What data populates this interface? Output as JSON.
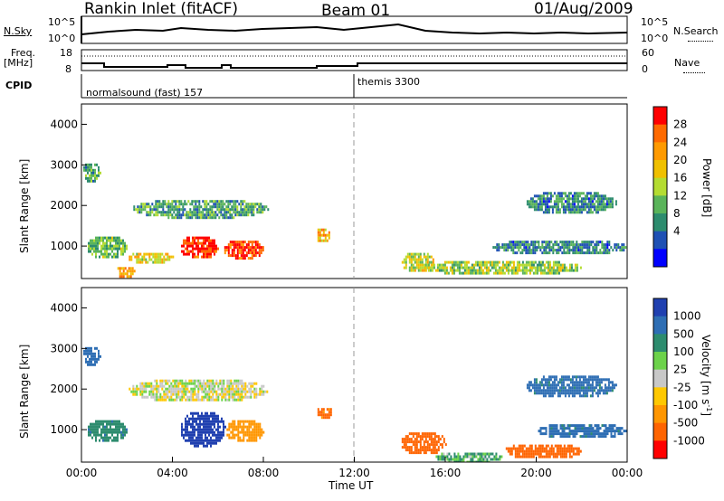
{
  "header": {
    "station": "Rankin Inlet (fitACF)",
    "beam": "Beam 01",
    "date": "01/Aug/2009"
  },
  "summary_panels": {
    "nsky_label": "N.Sky",
    "nsky_ticks": [
      "10^5",
      "10^0"
    ],
    "nsearch_label": "N.Search",
    "nsearch_ticks": [
      "10^5",
      "10^0"
    ],
    "freq_label": "Freq.",
    "freq_unit": "[MHz]",
    "freq_ticks": [
      "18",
      "8"
    ],
    "nave_label": "Nave",
    "nave_ticks": [
      "60",
      "0"
    ],
    "cpid_label": "CPID",
    "cpid_segments": [
      {
        "label": "normalsound (fast) 157",
        "start_hour": 0,
        "end_hour": 12
      },
      {
        "label": "themis 3300",
        "start_hour": 12,
        "end_hour": 24
      }
    ]
  },
  "colorbars": {
    "power": {
      "label": "Power [dB]",
      "ticks": [
        "28",
        "24",
        "20",
        "16",
        "12",
        "8",
        "4"
      ],
      "colors": [
        "#ff0000",
        "#ff6a00",
        "#ff9a00",
        "#f0c000",
        "#b4dc32",
        "#5ab45a",
        "#2d8c6e",
        "#1e50b4",
        "#0000ff"
      ]
    },
    "velocity": {
      "label": "Velocity [m s",
      "label_sup": "-1",
      "label_end": "]",
      "ticks": [
        "1000",
        "500",
        "100",
        "25",
        "-25",
        "-100",
        "-500",
        "-1000"
      ],
      "colors": [
        "#2040b0",
        "#2e6eb4",
        "#2d8c6e",
        "#6cd24a",
        "#c8c8c8",
        "#ffc800",
        "#ff9600",
        "#ff6400",
        "#ff0000"
      ]
    }
  },
  "chart_data": [
    {
      "type": "heatmap",
      "name": "power",
      "ylabel": "Slant Range [km]",
      "yticks": [
        "4000",
        "3000",
        "2000",
        "1000"
      ],
      "ylim": [
        200,
        4500
      ],
      "xlim": [
        0,
        24
      ],
      "zlabel": "Power [dB]",
      "zlim": [
        0,
        30
      ],
      "regions": [
        {
          "x0": 0.0,
          "x1": 0.8,
          "y0": 2600,
          "y1": 3100,
          "value": 10
        },
        {
          "x0": 0.2,
          "x1": 2.0,
          "y0": 700,
          "y1": 1300,
          "value": 12
        },
        {
          "x0": 1.5,
          "x1": 2.3,
          "y0": 250,
          "y1": 550,
          "value": 22
        },
        {
          "x0": 2.0,
          "x1": 4.0,
          "y0": 600,
          "y1": 900,
          "value": 18
        },
        {
          "x0": 4.3,
          "x1": 6.0,
          "y0": 700,
          "y1": 1300,
          "value": 28
        },
        {
          "x0": 6.2,
          "x1": 8.0,
          "y0": 700,
          "y1": 1200,
          "value": 27
        },
        {
          "x0": 2.2,
          "x1": 8.2,
          "y0": 1700,
          "y1": 2200,
          "value": 10
        },
        {
          "x0": 10.3,
          "x1": 10.9,
          "y0": 1100,
          "y1": 1500,
          "value": 20
        },
        {
          "x0": 14.0,
          "x1": 15.5,
          "y0": 400,
          "y1": 900,
          "value": 16
        },
        {
          "x0": 15.0,
          "x1": 22.0,
          "y0": 300,
          "y1": 700,
          "value": 14
        },
        {
          "x0": 18.0,
          "x1": 24.0,
          "y0": 800,
          "y1": 1200,
          "value": 8
        },
        {
          "x0": 19.5,
          "x1": 23.5,
          "y0": 1800,
          "y1": 2400,
          "value": 8
        }
      ]
    },
    {
      "type": "heatmap",
      "name": "velocity",
      "ylabel": "Slant Range [km]",
      "yticks": [
        "4000",
        "3000",
        "2000",
        "1000"
      ],
      "ylim": [
        200,
        4500
      ],
      "xlabel": "Time UT",
      "xticks": [
        "00:00",
        "04:00",
        "08:00",
        "12:00",
        "16:00",
        "20:00",
        "00:00"
      ],
      "xlim": [
        0,
        24
      ],
      "zlabel": "Velocity [m s-1]",
      "zlim": [
        -1000,
        1000
      ],
      "regions": [
        {
          "x0": 0.0,
          "x1": 0.8,
          "y0": 2600,
          "y1": 3100,
          "value": 500
        },
        {
          "x0": 0.2,
          "x1": 2.0,
          "y0": 700,
          "y1": 1300,
          "value": 200
        },
        {
          "x0": 2.0,
          "x1": 8.2,
          "y0": 1700,
          "y1": 2300,
          "value": 0
        },
        {
          "x0": 4.3,
          "x1": 6.3,
          "y0": 600,
          "y1": 1500,
          "value": 1000
        },
        {
          "x0": 6.3,
          "x1": 8.0,
          "y0": 700,
          "y1": 1300,
          "value": -150
        },
        {
          "x0": 10.3,
          "x1": 11.0,
          "y0": 1300,
          "y1": 1600,
          "value": -300
        },
        {
          "x0": 14.0,
          "x1": 16.0,
          "y0": 400,
          "y1": 1000,
          "value": -400
        },
        {
          "x0": 15.5,
          "x1": 18.5,
          "y0": 200,
          "y1": 500,
          "value": 80
        },
        {
          "x0": 18.5,
          "x1": 22.0,
          "y0": 300,
          "y1": 700,
          "value": -400
        },
        {
          "x0": 20.0,
          "x1": 24.0,
          "y0": 800,
          "y1": 1200,
          "value": 300
        },
        {
          "x0": 19.5,
          "x1": 23.5,
          "y0": 1800,
          "y1": 2400,
          "value": 300
        }
      ]
    }
  ]
}
